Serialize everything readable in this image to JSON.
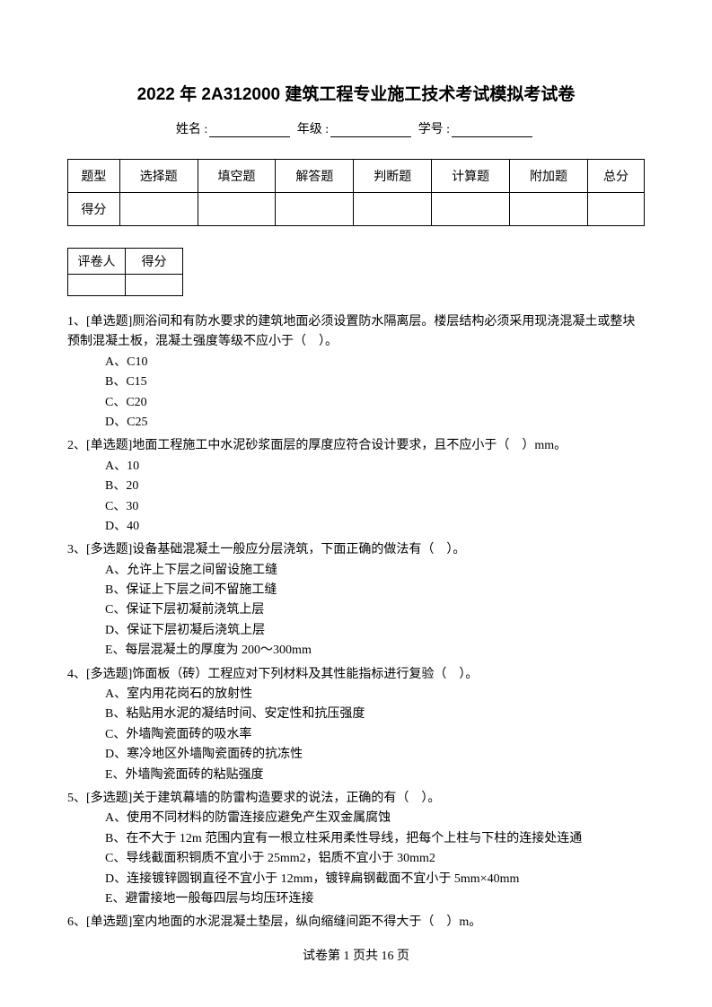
{
  "title": "2022 年 2A312000 建筑工程专业施工技术考试模拟考试卷",
  "info": {
    "name_label": "姓名 :",
    "grade_label": "年级 :",
    "student_id_label": "学号 :"
  },
  "score_table": {
    "headers": [
      "题型",
      "选择题",
      "填空题",
      "解答题",
      "判断题",
      "计算题",
      "附加题",
      "总分"
    ],
    "row2_label": "得分"
  },
  "reviewer_table": {
    "col1": "评卷人",
    "col2": "得分"
  },
  "questions": [
    {
      "text": "1、[单选题]厕浴间和有防水要求的建筑地面必须设置防水隔离层。楼层结构必须采用现浇混凝土或整块预制混凝土板，混凝土强度等级不应小于（　）。",
      "options": [
        "A、C10",
        "B、C15",
        "C、C20",
        "D、C25"
      ]
    },
    {
      "text": "2、[单选题]地面工程施工中水泥砂浆面层的厚度应符合设计要求，且不应小于（　）mm。",
      "options": [
        "A、10",
        "B、20",
        "C、30",
        "D、40"
      ]
    },
    {
      "text": "3、[多选题]设备基础混凝土一般应分层浇筑，下面正确的做法有（　）。",
      "options": [
        "A、允许上下层之间留设施工缝",
        "B、保证上下层之间不留施工缝",
        "C、保证下层初凝前浇筑上层",
        "D、保证下层初凝后浇筑上层",
        "E、每层混凝土的厚度为 200～300mm"
      ]
    },
    {
      "text": "4、[多选题]饰面板（砖）工程应对下列材料及其性能指标进行复验（　）。",
      "options": [
        "A、室内用花岗石的放射性",
        "B、粘贴用水泥的凝结时间、安定性和抗压强度",
        "C、外墙陶瓷面砖的吸水率",
        "D、寒冷地区外墙陶瓷面砖的抗冻性",
        "E、外墙陶瓷面砖的粘贴强度"
      ]
    },
    {
      "text": "5、[多选题]关于建筑幕墙的防雷构造要求的说法，正确的有（　）。",
      "options": [
        "A、使用不同材料的防雷连接应避免产生双金属腐蚀",
        "B、在不大于 12m 范围内宜有一根立柱采用柔性导线，把每个上柱与下柱的连接处连通",
        "C、导线截面积铜质不宜小于 25mm2，铝质不宜小于 30mm2",
        "D、连接镀锌圆钢直径不宜小于 12mm，镀锌扁钢截面不宜小于 5mm×40mm",
        "E、避雷接地一般每四层与均压环连接"
      ]
    },
    {
      "text": "6、[单选题]室内地面的水泥混凝土垫层，纵向缩缝间距不得大于（　）m。",
      "options": []
    }
  ],
  "footer": {
    "prefix": "试卷第 ",
    "current": "1",
    "middle": " 页共 ",
    "total": "16",
    "suffix": " 页"
  }
}
